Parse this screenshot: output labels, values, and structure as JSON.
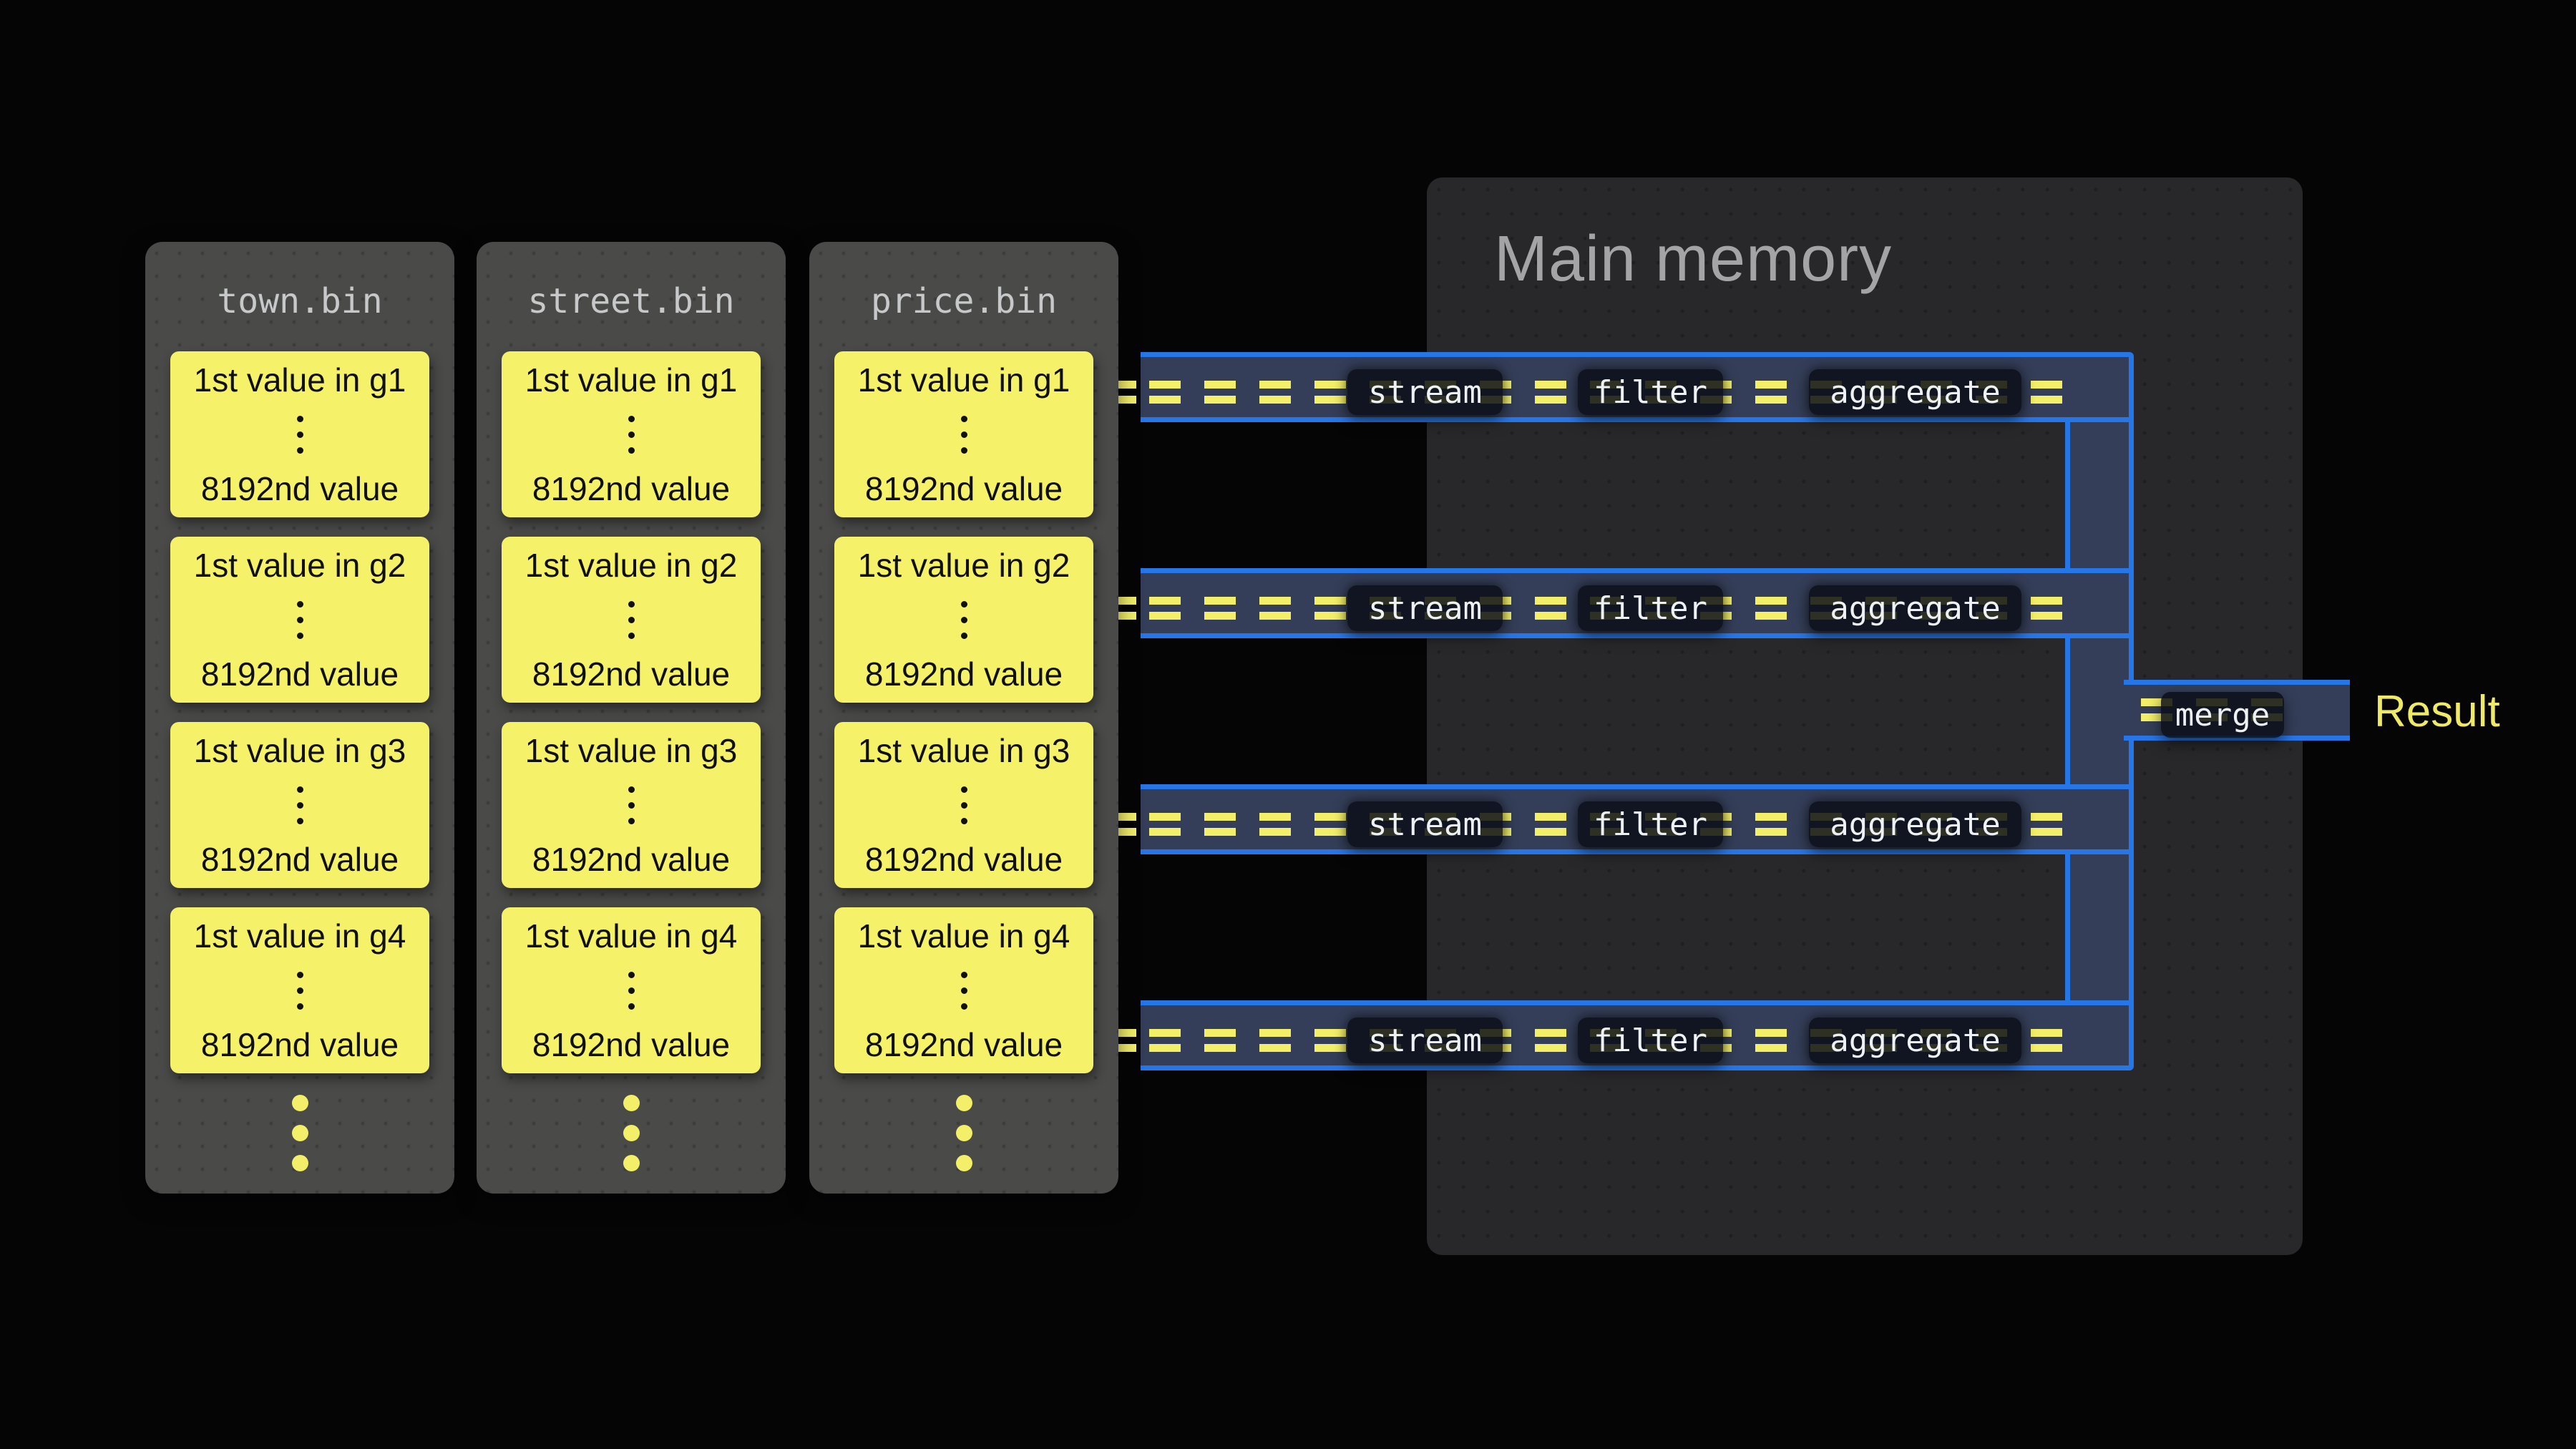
{
  "memory": {
    "title": "Main memory"
  },
  "files": {
    "cards": [
      {
        "title": "town.bin",
        "groups": [
          {
            "first": "1st value in g1",
            "last": "8192nd value"
          },
          {
            "first": "1st value in g2",
            "last": "8192nd value"
          },
          {
            "first": "1st value in g3",
            "last": "8192nd value"
          },
          {
            "first": "1st value in g4",
            "last": "8192nd value"
          }
        ]
      },
      {
        "title": "street.bin",
        "groups": [
          {
            "first": "1st value in g1",
            "last": "8192nd value"
          },
          {
            "first": "1st value in g2",
            "last": "8192nd value"
          },
          {
            "first": "1st value in g3",
            "last": "8192nd value"
          },
          {
            "first": "1st value in g4",
            "last": "8192nd value"
          }
        ]
      },
      {
        "title": "price.bin",
        "groups": [
          {
            "first": "1st value in g1",
            "last": "8192nd value"
          },
          {
            "first": "1st value in g2",
            "last": "8192nd value"
          },
          {
            "first": "1st value in g3",
            "last": "8192nd value"
          },
          {
            "first": "1st value in g4",
            "last": "8192nd value"
          }
        ]
      }
    ]
  },
  "pipelines": {
    "rows": 4,
    "stages": [
      "stream",
      "filter",
      "aggregate"
    ]
  },
  "merge": {
    "label": "merge"
  },
  "result": {
    "label": "Result"
  },
  "icons": {
    "stream_token": "double-bar-equals",
    "ellipsis_vertical": "vertical-dots"
  },
  "colors": {
    "background": "#050506",
    "memory_bg": "#28282b",
    "memory_title": "#a4a4a7",
    "card_bg": "#4a4a49",
    "card_title": "#c7c8c9",
    "block_yellow": "#f5f169",
    "block_text": "#101010",
    "pipe_fill": "#343e58",
    "pipe_border_blue": "#2776e8",
    "equals_yellow": "#f3ef69",
    "op_box_bg": "#0a0e18",
    "op_box_text": "#eef1f4",
    "result_text": "#eeea67"
  }
}
